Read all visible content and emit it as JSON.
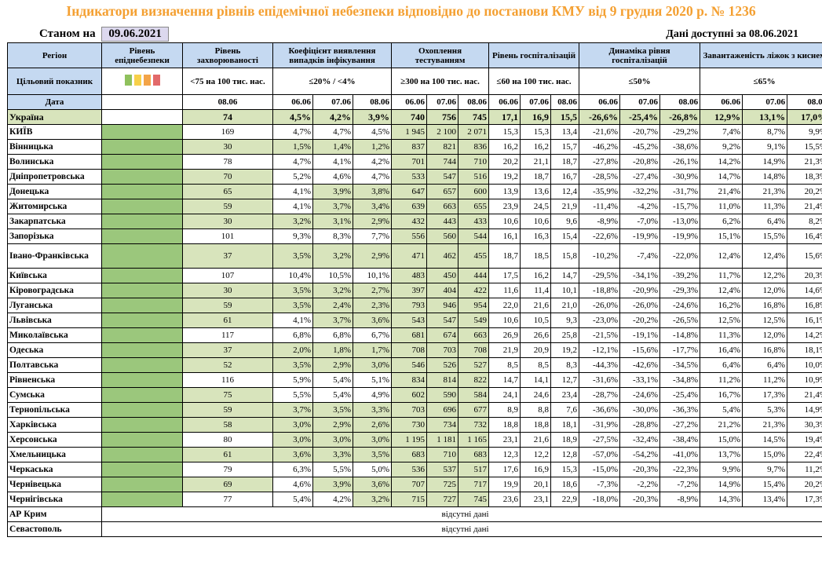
{
  "title": "Індикатори визначення рівнів епідемічної небезпеки відповідно до постанови КМУ від 9 грудня 2020 р. № 1236",
  "as_of_label": "Станом на",
  "as_of_date": "09.06.2021",
  "available_label": "Дані доступні за 08.06.2021",
  "headers": {
    "region": "Регіон",
    "level": "Рівень епіднебезпеки",
    "incidence": "Рівень захворюваності",
    "detection": "Коефіцієнт виявлення випадків інфікування",
    "testing": "Охоплення тестуванням",
    "hosp": "Рівень госпіталізацій",
    "hosp_dyn": "Динаміка рівня госпіталізацій",
    "oxygen": "Завантаженість ліжок з киснем"
  },
  "targets": {
    "label": "Цільовий показник",
    "incidence": "<75 на 100 тис. нас.",
    "detection": "≤20% / <4%",
    "testing": "≥300 на 100 тис. нас.",
    "hosp": "≤60 на 100 тис. нас.",
    "hosp_dyn": "≤50%",
    "oxygen": "≤65%",
    "palette": [
      "#8fc15d",
      "#f7d04a",
      "#f3a448",
      "#e26a6a"
    ]
  },
  "dates_label": "Дата",
  "dates": {
    "incidence": "08.06",
    "three": [
      "06.06",
      "07.06",
      "08.06"
    ]
  },
  "na_text": "відсутні дані",
  "rows": [
    {
      "region": "Україна",
      "inc": "74",
      "det": [
        "4,5%",
        "4,2%",
        "3,9%"
      ],
      "test": [
        "740",
        "756",
        "745"
      ],
      "hosp": [
        "17,1",
        "16,9",
        "15,5"
      ],
      "dyn": [
        "-26,6%",
        "-25,4%",
        "-26,8%"
      ],
      "oxy": [
        "12,9%",
        "13,1%",
        "17,0%"
      ],
      "ukr": true
    },
    {
      "region": "КИЇВ",
      "inc": "169",
      "det": [
        "4,7%",
        "4,7%",
        "4,5%"
      ],
      "test": [
        "1 945",
        "2 100",
        "2 071"
      ],
      "hosp": [
        "15,3",
        "15,3",
        "13,4"
      ],
      "dyn": [
        "-21,6%",
        "-20,7%",
        "-29,2%"
      ],
      "oxy": [
        "7,4%",
        "8,7%",
        "9,9%"
      ],
      "gi": false,
      "gd": [
        0,
        0,
        0
      ],
      "gt": [
        1,
        1,
        1
      ]
    },
    {
      "region": "Вінницька",
      "inc": "30",
      "det": [
        "1,5%",
        "1,4%",
        "1,2%"
      ],
      "test": [
        "837",
        "821",
        "836"
      ],
      "hosp": [
        "16,2",
        "16,2",
        "15,7"
      ],
      "dyn": [
        "-46,2%",
        "-45,2%",
        "-38,6%"
      ],
      "oxy": [
        "9,2%",
        "9,1%",
        "15,5%"
      ],
      "gi": true,
      "gd": [
        1,
        1,
        1
      ],
      "gt": [
        1,
        1,
        1
      ]
    },
    {
      "region": "Волинська",
      "inc": "78",
      "det": [
        "4,7%",
        "4,1%",
        "4,2%"
      ],
      "test": [
        "701",
        "744",
        "710"
      ],
      "hosp": [
        "20,2",
        "21,1",
        "18,7"
      ],
      "dyn": [
        "-27,8%",
        "-20,8%",
        "-26,1%"
      ],
      "oxy": [
        "14,2%",
        "14,9%",
        "21,3%"
      ],
      "gi": false,
      "gd": [
        0,
        0,
        0
      ],
      "gt": [
        1,
        1,
        1
      ]
    },
    {
      "region": "Дніпропетровська",
      "inc": "70",
      "det": [
        "5,2%",
        "4,6%",
        "4,7%"
      ],
      "test": [
        "533",
        "547",
        "516"
      ],
      "hosp": [
        "19,2",
        "18,7",
        "16,7"
      ],
      "dyn": [
        "-28,5%",
        "-27,4%",
        "-30,9%"
      ],
      "oxy": [
        "14,7%",
        "14,8%",
        "18,3%"
      ],
      "gi": true,
      "gd": [
        0,
        0,
        0
      ],
      "gt": [
        1,
        1,
        1
      ]
    },
    {
      "region": "Донецька",
      "inc": "65",
      "det": [
        "4,1%",
        "3,9%",
        "3,8%"
      ],
      "test": [
        "647",
        "657",
        "600"
      ],
      "hosp": [
        "13,9",
        "13,6",
        "12,4"
      ],
      "dyn": [
        "-35,9%",
        "-32,2%",
        "-31,7%"
      ],
      "oxy": [
        "21,4%",
        "21,3%",
        "20,2%"
      ],
      "gi": true,
      "gd": [
        0,
        1,
        1
      ],
      "gt": [
        1,
        1,
        1
      ]
    },
    {
      "region": "Житомирська",
      "inc": "59",
      "det": [
        "4,1%",
        "3,7%",
        "3,4%"
      ],
      "test": [
        "639",
        "663",
        "655"
      ],
      "hosp": [
        "23,9",
        "24,5",
        "21,9"
      ],
      "dyn": [
        "-11,4%",
        "-4,2%",
        "-15,7%"
      ],
      "oxy": [
        "11,0%",
        "11,3%",
        "21,4%"
      ],
      "gi": true,
      "gd": [
        0,
        1,
        1
      ],
      "gt": [
        1,
        1,
        1
      ]
    },
    {
      "region": "Закарпатська",
      "inc": "30",
      "det": [
        "3,2%",
        "3,1%",
        "2,9%"
      ],
      "test": [
        "432",
        "443",
        "433"
      ],
      "hosp": [
        "10,6",
        "10,6",
        "9,6"
      ],
      "dyn": [
        "-8,9%",
        "-7,0%",
        "-13,0%"
      ],
      "oxy": [
        "6,2%",
        "6,4%",
        "8,2%"
      ],
      "gi": true,
      "gd": [
        1,
        1,
        1
      ],
      "gt": [
        1,
        1,
        1
      ]
    },
    {
      "region": "Запорізька",
      "inc": "101",
      "det": [
        "9,3%",
        "8,3%",
        "7,7%"
      ],
      "test": [
        "556",
        "560",
        "544"
      ],
      "hosp": [
        "16,1",
        "16,3",
        "15,4"
      ],
      "dyn": [
        "-22,6%",
        "-19,9%",
        "-19,9%"
      ],
      "oxy": [
        "15,1%",
        "15,5%",
        "16,4%"
      ],
      "gi": false,
      "gd": [
        0,
        0,
        0
      ],
      "gt": [
        1,
        1,
        1
      ]
    },
    {
      "region": "Івано-Франківська",
      "inc": "37",
      "det": [
        "3,5%",
        "3,2%",
        "2,9%"
      ],
      "test": [
        "471",
        "462",
        "455"
      ],
      "hosp": [
        "18,7",
        "18,5",
        "15,8"
      ],
      "dyn": [
        "-10,2%",
        "-7,4%",
        "-22,0%"
      ],
      "oxy": [
        "12,4%",
        "12,4%",
        "15,6%"
      ],
      "gi": true,
      "gd": [
        1,
        1,
        1
      ],
      "gt": [
        1,
        1,
        1
      ],
      "tall": true
    },
    {
      "region": "Київська",
      "inc": "107",
      "det": [
        "10,4%",
        "10,5%",
        "10,1%"
      ],
      "test": [
        "483",
        "450",
        "444"
      ],
      "hosp": [
        "17,5",
        "16,2",
        "14,7"
      ],
      "dyn": [
        "-29,5%",
        "-34,1%",
        "-39,2%"
      ],
      "oxy": [
        "11,7%",
        "12,2%",
        "20,3%"
      ],
      "gi": false,
      "gd": [
        0,
        0,
        0
      ],
      "gt": [
        1,
        1,
        1
      ]
    },
    {
      "region": "Кіровоградська",
      "inc": "30",
      "det": [
        "3,5%",
        "3,2%",
        "2,7%"
      ],
      "test": [
        "397",
        "404",
        "422"
      ],
      "hosp": [
        "11,6",
        "11,4",
        "10,1"
      ],
      "dyn": [
        "-18,8%",
        "-20,9%",
        "-29,3%"
      ],
      "oxy": [
        "12,4%",
        "12,0%",
        "14,6%"
      ],
      "gi": true,
      "gd": [
        1,
        1,
        1
      ],
      "gt": [
        1,
        1,
        1
      ]
    },
    {
      "region": "Луганська",
      "inc": "59",
      "det": [
        "3,5%",
        "2,4%",
        "2,3%"
      ],
      "test": [
        "793",
        "946",
        "954"
      ],
      "hosp": [
        "22,0",
        "21,6",
        "21,0"
      ],
      "dyn": [
        "-26,0%",
        "-26,0%",
        "-24,6%"
      ],
      "oxy": [
        "16,2%",
        "16,8%",
        "16,8%"
      ],
      "gi": true,
      "gd": [
        1,
        1,
        1
      ],
      "gt": [
        1,
        1,
        1
      ]
    },
    {
      "region": "Львівська",
      "inc": "61",
      "det": [
        "4,1%",
        "3,7%",
        "3,6%"
      ],
      "test": [
        "543",
        "547",
        "549"
      ],
      "hosp": [
        "10,6",
        "10,5",
        "9,3"
      ],
      "dyn": [
        "-23,0%",
        "-20,2%",
        "-26,5%"
      ],
      "oxy": [
        "12,5%",
        "12,5%",
        "16,1%"
      ],
      "gi": true,
      "gd": [
        0,
        1,
        1
      ],
      "gt": [
        1,
        1,
        1
      ]
    },
    {
      "region": "Миколаївська",
      "inc": "117",
      "det": [
        "6,8%",
        "6,8%",
        "6,7%"
      ],
      "test": [
        "681",
        "674",
        "663"
      ],
      "hosp": [
        "26,9",
        "26,6",
        "25,8"
      ],
      "dyn": [
        "-21,5%",
        "-19,1%",
        "-14,8%"
      ],
      "oxy": [
        "11,3%",
        "12,0%",
        "14,2%"
      ],
      "gi": false,
      "gd": [
        0,
        0,
        0
      ],
      "gt": [
        1,
        1,
        1
      ]
    },
    {
      "region": "Одеська",
      "inc": "37",
      "det": [
        "2,0%",
        "1,8%",
        "1,7%"
      ],
      "test": [
        "708",
        "703",
        "708"
      ],
      "hosp": [
        "21,9",
        "20,9",
        "19,2"
      ],
      "dyn": [
        "-12,1%",
        "-15,6%",
        "-17,7%"
      ],
      "oxy": [
        "16,4%",
        "16,8%",
        "18,1%"
      ],
      "gi": true,
      "gd": [
        1,
        1,
        1
      ],
      "gt": [
        1,
        1,
        1
      ]
    },
    {
      "region": "Полтавська",
      "inc": "52",
      "det": [
        "3,5%",
        "2,9%",
        "3,0%"
      ],
      "test": [
        "546",
        "526",
        "527"
      ],
      "hosp": [
        "8,5",
        "8,5",
        "8,3"
      ],
      "dyn": [
        "-44,3%",
        "-42,6%",
        "-34,5%"
      ],
      "oxy": [
        "6,4%",
        "6,4%",
        "10,0%"
      ],
      "gi": true,
      "gd": [
        1,
        1,
        1
      ],
      "gt": [
        1,
        1,
        1
      ]
    },
    {
      "region": "Рівненська",
      "inc": "116",
      "det": [
        "5,9%",
        "5,4%",
        "5,1%"
      ],
      "test": [
        "834",
        "814",
        "822"
      ],
      "hosp": [
        "14,7",
        "14,1",
        "12,7"
      ],
      "dyn": [
        "-31,6%",
        "-33,1%",
        "-34,8%"
      ],
      "oxy": [
        "11,2%",
        "11,2%",
        "10,9%"
      ],
      "gi": false,
      "gd": [
        0,
        0,
        0
      ],
      "gt": [
        1,
        1,
        1
      ]
    },
    {
      "region": "Сумська",
      "inc": "75",
      "det": [
        "5,5%",
        "5,4%",
        "4,9%"
      ],
      "test": [
        "602",
        "590",
        "584"
      ],
      "hosp": [
        "24,1",
        "24,6",
        "23,4"
      ],
      "dyn": [
        "-28,7%",
        "-24,6%",
        "-25,4%"
      ],
      "oxy": [
        "16,7%",
        "17,3%",
        "21,4%"
      ],
      "gi": true,
      "gd": [
        0,
        0,
        0
      ],
      "gt": [
        1,
        1,
        1
      ]
    },
    {
      "region": "Тернопільська",
      "inc": "59",
      "det": [
        "3,7%",
        "3,5%",
        "3,3%"
      ],
      "test": [
        "703",
        "696",
        "677"
      ],
      "hosp": [
        "8,9",
        "8,8",
        "7,6"
      ],
      "dyn": [
        "-36,6%",
        "-30,0%",
        "-36,3%"
      ],
      "oxy": [
        "5,4%",
        "5,3%",
        "14,9%"
      ],
      "gi": true,
      "gd": [
        1,
        1,
        1
      ],
      "gt": [
        1,
        1,
        1
      ]
    },
    {
      "region": "Харківська",
      "inc": "58",
      "det": [
        "3,0%",
        "2,9%",
        "2,6%"
      ],
      "test": [
        "730",
        "734",
        "732"
      ],
      "hosp": [
        "18,8",
        "18,8",
        "18,1"
      ],
      "dyn": [
        "-31,9%",
        "-28,8%",
        "-27,2%"
      ],
      "oxy": [
        "21,2%",
        "21,3%",
        "30,3%"
      ],
      "gi": true,
      "gd": [
        1,
        1,
        1
      ],
      "gt": [
        1,
        1,
        1
      ]
    },
    {
      "region": "Херсонська",
      "inc": "80",
      "det": [
        "3,0%",
        "3,0%",
        "3,0%"
      ],
      "test": [
        "1 195",
        "1 181",
        "1 165"
      ],
      "hosp": [
        "23,1",
        "21,6",
        "18,9"
      ],
      "dyn": [
        "-27,5%",
        "-32,4%",
        "-38,4%"
      ],
      "oxy": [
        "15,0%",
        "14,5%",
        "19,4%"
      ],
      "gi": false,
      "gd": [
        1,
        1,
        1
      ],
      "gt": [
        1,
        1,
        1
      ]
    },
    {
      "region": "Хмельницька",
      "inc": "61",
      "det": [
        "3,6%",
        "3,3%",
        "3,5%"
      ],
      "test": [
        "683",
        "710",
        "683"
      ],
      "hosp": [
        "12,3",
        "12,2",
        "12,8"
      ],
      "dyn": [
        "-57,0%",
        "-54,2%",
        "-41,0%"
      ],
      "oxy": [
        "13,7%",
        "15,0%",
        "22,4%"
      ],
      "gi": true,
      "gd": [
        1,
        1,
        1
      ],
      "gt": [
        1,
        1,
        1
      ]
    },
    {
      "region": "Черкаська",
      "inc": "79",
      "det": [
        "6,3%",
        "5,5%",
        "5,0%"
      ],
      "test": [
        "536",
        "537",
        "517"
      ],
      "hosp": [
        "17,6",
        "16,9",
        "15,3"
      ],
      "dyn": [
        "-15,0%",
        "-20,3%",
        "-22,3%"
      ],
      "oxy": [
        "9,9%",
        "9,7%",
        "11,2%"
      ],
      "gi": false,
      "gd": [
        0,
        0,
        0
      ],
      "gt": [
        1,
        1,
        1
      ]
    },
    {
      "region": "Чернівецька",
      "inc": "69",
      "det": [
        "4,6%",
        "3,9%",
        "3,6%"
      ],
      "test": [
        "707",
        "725",
        "717"
      ],
      "hosp": [
        "19,9",
        "20,1",
        "18,6"
      ],
      "dyn": [
        "-7,3%",
        "-2,2%",
        "-7,2%"
      ],
      "oxy": [
        "14,9%",
        "15,4%",
        "20,2%"
      ],
      "gi": true,
      "gd": [
        0,
        1,
        1
      ],
      "gt": [
        1,
        1,
        1
      ]
    },
    {
      "region": "Чернігівська",
      "inc": "77",
      "det": [
        "5,4%",
        "4,2%",
        "3,2%"
      ],
      "test": [
        "715",
        "727",
        "745"
      ],
      "hosp": [
        "23,6",
        "23,1",
        "22,9"
      ],
      "dyn": [
        "-18,0%",
        "-20,3%",
        "-8,9%"
      ],
      "oxy": [
        "14,3%",
        "13,4%",
        "17,3%"
      ],
      "gi": false,
      "gd": [
        0,
        0,
        1
      ],
      "gt": [
        1,
        1,
        1
      ]
    }
  ],
  "na_rows": [
    "АР Крим",
    "Севастополь"
  ]
}
